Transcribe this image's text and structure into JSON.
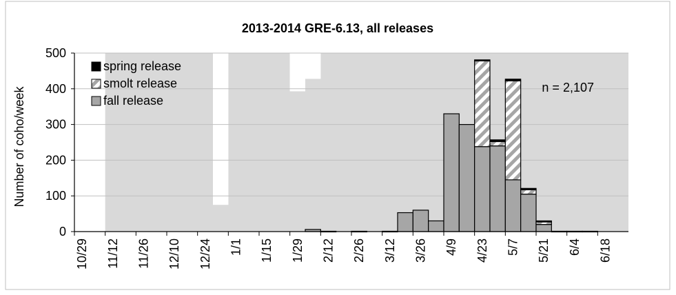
{
  "chart_data": {
    "type": "bar",
    "stacked": true,
    "title": "2013-2014  GRE-6.13, all releases",
    "ylabel": "Number of coho/week",
    "xlabel": "",
    "ylim": [
      0,
      500
    ],
    "yticks": [
      0,
      100,
      200,
      300,
      400,
      500
    ],
    "grid": true,
    "legend_position": "top-left",
    "annotation": "n = 2,107",
    "tick_labels": [
      "10/29",
      "11/12",
      "11/26",
      "12/10",
      "12/24",
      "1/1",
      "1/15",
      "1/29",
      "2/12",
      "2/26",
      "3/12",
      "3/26",
      "4/9",
      "4/23",
      "5/7",
      "5/21",
      "6/4",
      "6/18"
    ],
    "categories": [
      "10/29",
      "11/5",
      "11/12",
      "11/19",
      "11/26",
      "12/3",
      "12/10",
      "12/17",
      "12/24",
      "12/31",
      "1/1",
      "1/8",
      "1/15",
      "1/22",
      "1/29",
      "2/5",
      "2/12",
      "2/19",
      "2/26",
      "3/5",
      "3/12",
      "3/19",
      "3/26",
      "4/2",
      "4/9",
      "4/16",
      "4/23",
      "4/30",
      "5/7",
      "5/14",
      "5/21",
      "5/28",
      "6/4",
      "6/11",
      "6/18",
      "6/25"
    ],
    "series": [
      {
        "name": "fall release",
        "color": "#a6a6a6",
        "pattern": "solid",
        "values": [
          0,
          0,
          0,
          0,
          0,
          0,
          0,
          0,
          0,
          0,
          0,
          0,
          0,
          0,
          0,
          6,
          1,
          0,
          1,
          0,
          1,
          53,
          60,
          30,
          330,
          300,
          238,
          240,
          145,
          105,
          20,
          1,
          1,
          1,
          0,
          0
        ]
      },
      {
        "name": "smolt release",
        "color": "#ffffff",
        "pattern": "diagonal-hatch",
        "values": [
          0,
          0,
          0,
          0,
          0,
          0,
          0,
          0,
          0,
          0,
          0,
          0,
          0,
          0,
          0,
          0,
          0,
          0,
          0,
          0,
          0,
          0,
          0,
          0,
          0,
          0,
          240,
          12,
          277,
          12,
          7,
          0,
          0,
          0,
          0,
          0
        ]
      },
      {
        "name": "spring release",
        "color": "#000000",
        "pattern": "solid",
        "values": [
          0,
          0,
          0,
          0,
          0,
          0,
          0,
          0,
          0,
          0,
          0,
          0,
          0,
          0,
          0,
          0,
          0,
          0,
          0,
          0,
          0,
          0,
          0,
          0,
          0,
          0,
          3,
          5,
          5,
          4,
          3,
          0,
          0,
          0,
          0,
          0
        ]
      }
    ],
    "background_gaps": [
      {
        "category": "10/29",
        "to": "11/5",
        "top_value": 500
      },
      {
        "category": "12/31",
        "top_value": 75
      },
      {
        "category": "1/29",
        "top_value": 393
      },
      {
        "category": "2/5",
        "top_value": 428
      }
    ],
    "colors": {
      "plot_background": "#d9d9d9",
      "gridline": "#bfbfbf",
      "bar_outline": "#000000"
    }
  }
}
